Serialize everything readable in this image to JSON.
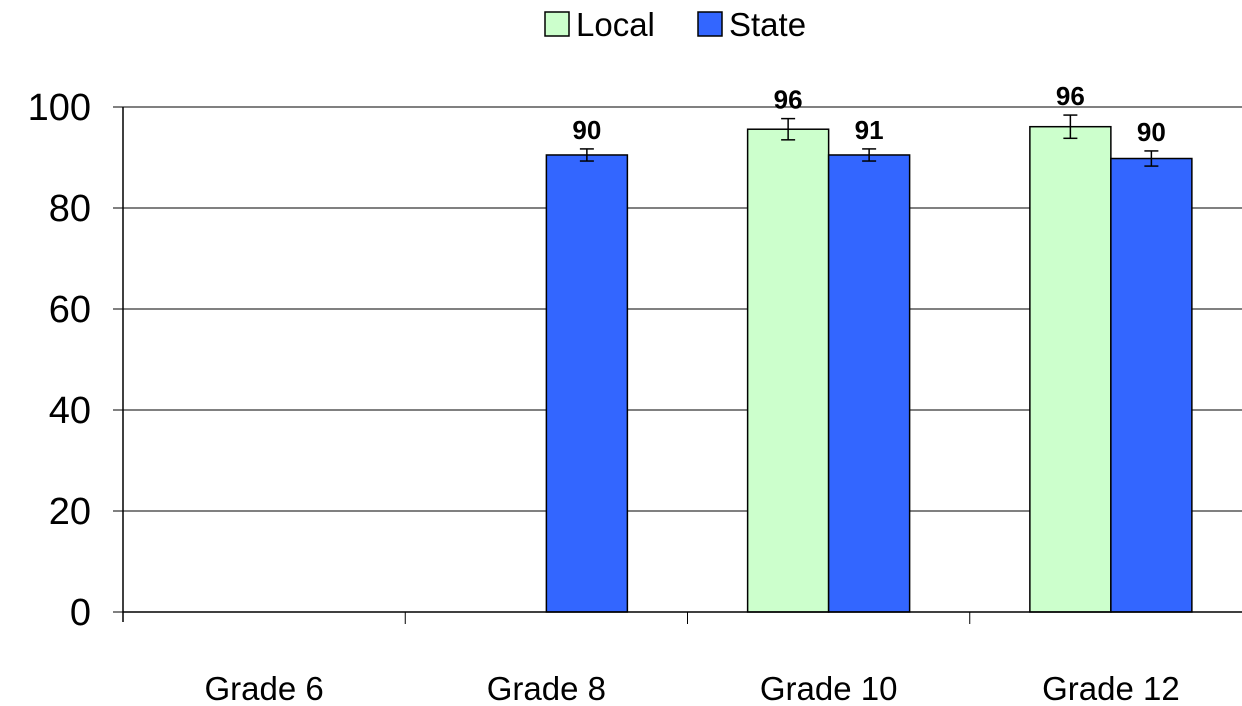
{
  "chart_data": {
    "type": "bar",
    "title": "",
    "xlabel": "",
    "ylabel": "",
    "categories": [
      "Grade 6",
      "Grade 8",
      "Grade 10",
      "Grade 12"
    ],
    "series": [
      {
        "name": "Local",
        "color": "#ccffcc",
        "values": [
          null,
          null,
          95.6,
          96.1
        ],
        "errors": [
          null,
          null,
          2.1,
          2.3
        ],
        "labels": [
          "",
          "",
          "96",
          "96"
        ]
      },
      {
        "name": "State",
        "color": "#3366ff",
        "values": [
          null,
          90.5,
          90.5,
          89.8
        ],
        "errors": [
          null,
          1.2,
          1.2,
          1.5
        ],
        "labels": [
          "",
          "90",
          "91",
          "90"
        ]
      }
    ],
    "ylim": [
      0,
      100
    ],
    "yticks": [
      0,
      20,
      40,
      60,
      80,
      100
    ],
    "grid": true,
    "legend": "top-center"
  }
}
